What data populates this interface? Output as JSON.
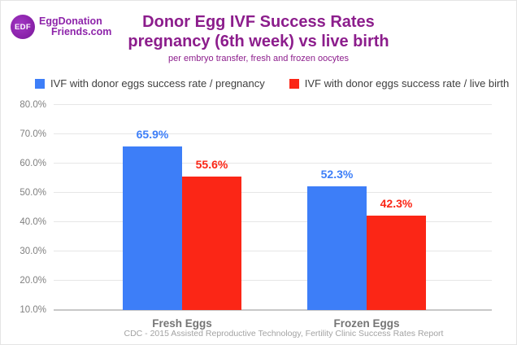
{
  "brand": {
    "monogram": "EDF",
    "name_line1": "EggDonation",
    "name_line2": "Friends.com",
    "brand_color": "#8e24aa"
  },
  "header": {
    "title_line1": "Donor Egg IVF Success Rates",
    "title_line2": "pregnancy (6th week) vs live birth",
    "subtitle": "per embryo transfer, fresh and frozen oocytes",
    "title_color": "#8c1d8c"
  },
  "legend": {
    "items": [
      {
        "label": "IVF with donor eggs success rate / pregnancy",
        "color": "#3d7ef8"
      },
      {
        "label": "IVF with donor eggs success rate / live birth",
        "color": "#fb2616"
      }
    ]
  },
  "chart_data": {
    "type": "bar",
    "title": "Donor Egg IVF Success Rates pregnancy (6th week) vs live birth",
    "subtitle": "per embryo transfer, fresh and frozen oocytes",
    "categories": [
      "Fresh Eggs",
      "Frozen Eggs"
    ],
    "series": [
      {
        "name": "IVF with donor eggs success rate / pregnancy",
        "color": "#3d7ef8",
        "values": [
          65.9,
          52.3
        ],
        "labels": [
          "65.9%",
          "52.3%"
        ]
      },
      {
        "name": "IVF with donor eggs success rate / live birth",
        "color": "#fb2616",
        "values": [
          55.6,
          42.3
        ],
        "labels": [
          "55.6%",
          "42.3%"
        ]
      }
    ],
    "xlabel": "",
    "ylabel": "",
    "ylim": [
      10,
      80
    ],
    "grid": true,
    "legend_position": "top",
    "y_ticks": [
      {
        "value": 80,
        "label": "80.0%"
      },
      {
        "value": 70,
        "label": "70.0%"
      },
      {
        "value": 60,
        "label": "60.0%"
      },
      {
        "value": 50,
        "label": "50.0%"
      },
      {
        "value": 40,
        "label": "40.0%"
      },
      {
        "value": 30,
        "label": "30.0%"
      },
      {
        "value": 20,
        "label": "20.0%"
      },
      {
        "value": 10,
        "label": "10.0%"
      }
    ]
  },
  "footer": {
    "source": "CDC - 2015 Assisted Reproductive Technology, Fertility Clinic Success Rates Report"
  }
}
